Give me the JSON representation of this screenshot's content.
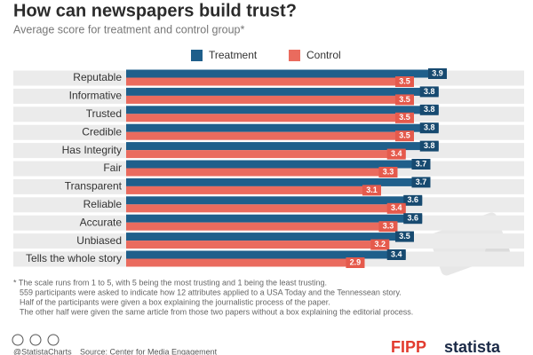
{
  "chart_data": {
    "type": "bar",
    "orientation": "horizontal",
    "title": "How can newspapers build trust?",
    "subtitle": "Average score for treatment and control group*",
    "categories": [
      "Reputable",
      "Informative",
      "Trusted",
      "Credible",
      "Has Integrity",
      "Fair",
      "Transparent",
      "Reliable",
      "Accurate",
      "Unbiased",
      "Tells the whole story"
    ],
    "series": [
      {
        "name": "Treatment",
        "color": "#1f5f8b",
        "values": [
          3.9,
          3.8,
          3.8,
          3.8,
          3.8,
          3.7,
          3.7,
          3.6,
          3.6,
          3.5,
          3.4
        ]
      },
      {
        "name": "Control",
        "color": "#ea6b5e",
        "values": [
          3.5,
          3.5,
          3.5,
          3.5,
          3.4,
          3.3,
          3.1,
          3.4,
          3.3,
          3.2,
          2.9
        ]
      }
    ],
    "notes": [
      "* The scale runs from 1 to 5, with 5 being the most trusting and 1 being the least trusting.",
      "559 participants were asked to indicate how 12 attributes applied to a USA Today and the Tennessean story.",
      "Half of the participants were given a box explaining the journalistic process of the paper.",
      "The other half were given the same article from those two papers without a box explaining the editorial process."
    ]
  },
  "footer": {
    "handle": "@StatistaCharts",
    "source": "Source: Center for Media Engagement",
    "logos": [
      "FIPP",
      "statista"
    ]
  }
}
